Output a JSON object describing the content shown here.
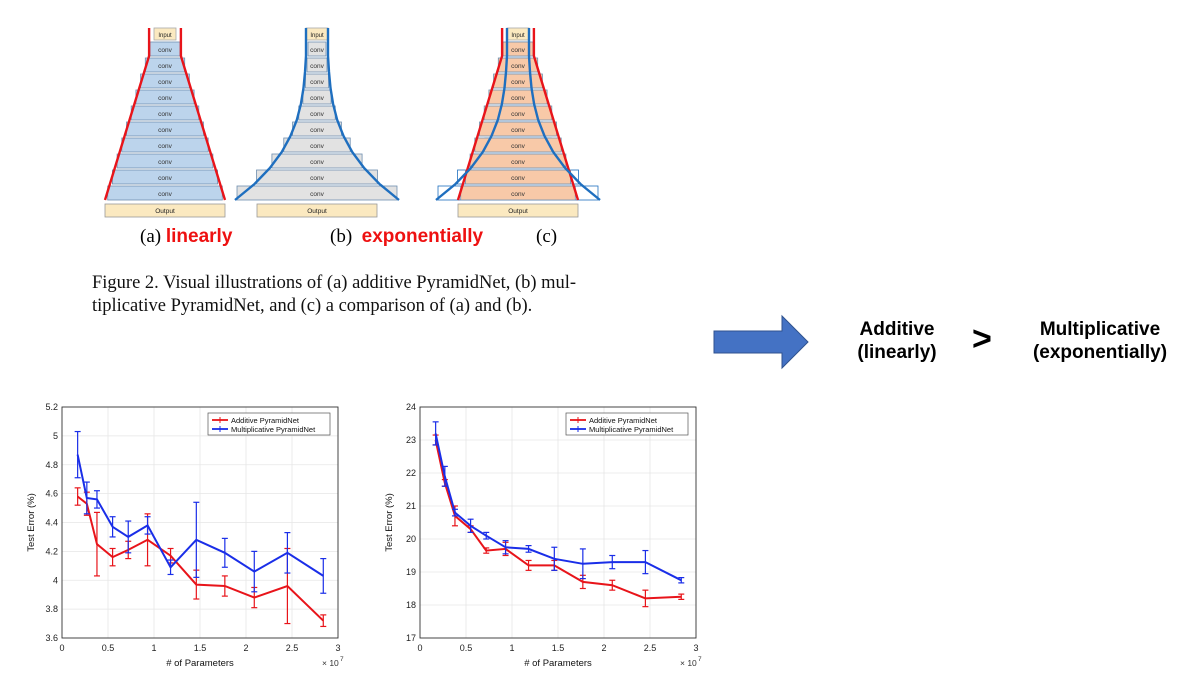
{
  "figure": {
    "layer_label": "conv",
    "input_label": "Input",
    "output_label": "Output",
    "labels": {
      "a_prefix": "(a)",
      "a_word": "linearly",
      "b_prefix": "(b)",
      "b_word": "exponentially",
      "c_prefix": "(c)"
    },
    "caption_line1": "Figure 2. Visual illustrations of (a) additive PyramidNet, (b) mul-",
    "caption_line2": "tiplicative PyramidNet, and (c) a comparison of (a) and (b)."
  },
  "conclusion": {
    "left_line1": "Additive",
    "left_line2": "(linearly)",
    "symbol": ">",
    "right_line1": "Multiplicative",
    "right_line2": "(exponentially)"
  },
  "colors": {
    "additive": "#e8141a",
    "multiplicative": "#1a2ee8",
    "arrow": "#4472c4",
    "conv_a": "#bcd4ec",
    "conv_b": "#e2e2e2",
    "conv_c": "#f8c9a8",
    "io": "#fbe9c0"
  },
  "chart_data": [
    {
      "type": "line",
      "xlabel": "# of Parameters",
      "ylabel": "Test Error (%)",
      "x_multiplier": "× 10",
      "x_exponent": "7",
      "xlim": [
        0,
        3
      ],
      "ylim": [
        3.6,
        5.2
      ],
      "xticks": [
        0,
        0.5,
        1,
        1.5,
        2,
        2.5,
        3
      ],
      "yticks": [
        3.6,
        3.8,
        4,
        4.2,
        4.4,
        4.6,
        4.8,
        5,
        5.2
      ],
      "ytick_labels": [
        "3.6",
        "3.8",
        "4",
        "4.2",
        "4.4",
        "4.6",
        "4.8",
        "5",
        "5.2"
      ],
      "legend_position": "top-right",
      "series": [
        {
          "name": "Additive PyramidNet",
          "x": [
            0.17,
            0.27,
            0.38,
            0.55,
            0.72,
            0.93,
            1.18,
            1.46,
            1.77,
            2.09,
            2.45,
            2.84
          ],
          "y": [
            4.58,
            4.53,
            4.25,
            4.16,
            4.21,
            4.28,
            4.17,
            3.97,
            3.96,
            3.88,
            3.96,
            3.72
          ],
          "err": [
            0.06,
            0.08,
            0.22,
            0.06,
            0.06,
            0.18,
            0.05,
            0.1,
            0.07,
            0.07,
            0.26,
            0.04
          ]
        },
        {
          "name": "Multiplicative PyramidNet",
          "x": [
            0.17,
            0.27,
            0.38,
            0.55,
            0.72,
            0.93,
            1.18,
            1.46,
            1.77,
            2.09,
            2.45,
            2.84
          ],
          "y": [
            4.87,
            4.57,
            4.56,
            4.37,
            4.3,
            4.38,
            4.09,
            4.28,
            4.19,
            4.06,
            4.19,
            4.03
          ],
          "err": [
            0.16,
            0.11,
            0.06,
            0.07,
            0.11,
            0.06,
            0.05,
            0.26,
            0.1,
            0.14,
            0.14,
            0.12
          ]
        }
      ]
    },
    {
      "type": "line",
      "xlabel": "# of Parameters",
      "ylabel": "Test Error (%)",
      "x_multiplier": "× 10",
      "x_exponent": "7",
      "xlim": [
        0,
        3
      ],
      "ylim": [
        17,
        24
      ],
      "xticks": [
        0,
        0.5,
        1,
        1.5,
        2,
        2.5,
        3
      ],
      "yticks": [
        17,
        18,
        19,
        20,
        21,
        22,
        23,
        24
      ],
      "ytick_labels": [
        "17",
        "18",
        "19",
        "20",
        "21",
        "22",
        "23",
        "24"
      ],
      "legend_position": "top-right",
      "series": [
        {
          "name": "Additive PyramidNet",
          "x": [
            0.17,
            0.27,
            0.38,
            0.55,
            0.72,
            0.93,
            1.18,
            1.46,
            1.77,
            2.09,
            2.45,
            2.84
          ],
          "y": [
            23.0,
            21.7,
            20.7,
            20.3,
            19.65,
            19.7,
            19.2,
            19.2,
            18.7,
            18.6,
            18.2,
            18.25
          ],
          "err": [
            0.15,
            0.1,
            0.3,
            0.1,
            0.08,
            0.2,
            0.15,
            0.15,
            0.2,
            0.15,
            0.25,
            0.08
          ]
        },
        {
          "name": "Multiplicative PyramidNet",
          "x": [
            0.17,
            0.27,
            0.38,
            0.55,
            0.72,
            0.93,
            1.18,
            1.46,
            1.77,
            2.09,
            2.45,
            2.84
          ],
          "y": [
            23.2,
            21.9,
            20.8,
            20.4,
            20.1,
            19.75,
            19.7,
            19.4,
            19.25,
            19.3,
            19.3,
            18.75
          ],
          "err": [
            0.35,
            0.3,
            0.1,
            0.2,
            0.1,
            0.2,
            0.1,
            0.35,
            0.45,
            0.2,
            0.35,
            0.08
          ]
        }
      ]
    }
  ]
}
